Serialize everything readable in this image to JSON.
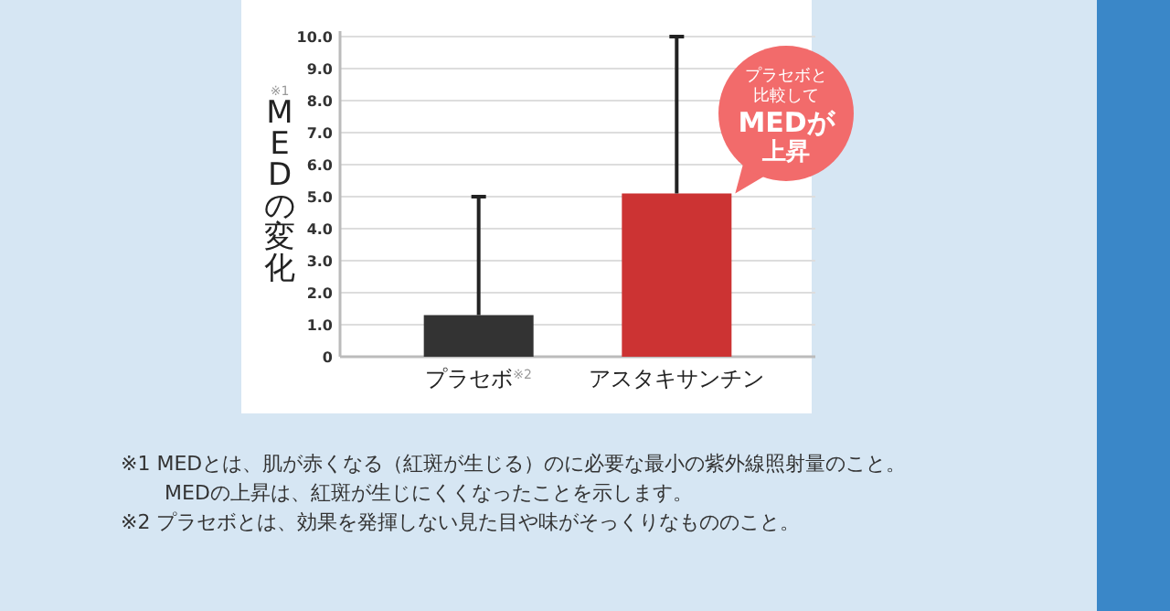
{
  "chart_data": {
    "type": "bar",
    "ylabel": "$^{※1}$MEDの変化",
    "categories": [
      "プラセボ$^{※2}$",
      "アスタキサンチン"
    ],
    "values": [
      1.3,
      5.1
    ],
    "colors": [
      "#333333",
      "#cc3333"
    ],
    "errors": [
      [
        1.3,
        5.0
      ],
      [
        5.1,
        10.0
      ]
    ],
    "ylim": [
      0,
      10
    ],
    "yticks": [
      0,
      {
        "value": 1,
        "label": "1.0"
      },
      {
        "value": 2,
        "label": "2.0"
      },
      {
        "value": 3,
        "label": "3.0"
      },
      {
        "value": 4,
        "label": "4.0"
      },
      {
        "value": 5,
        "label": "5.0"
      },
      {
        "value": 6,
        "label": "6.0"
      },
      {
        "value": 7,
        "label": "7.0"
      },
      {
        "value": 8,
        "label": "8.0"
      },
      {
        "value": 9,
        "label": "9.0"
      },
      {
        "value": 10,
        "label": "10.0"
      }
    ],
    "grid": "y",
    "annotations": [
      {
        "text": "プラセボと比較してMEDが上昇",
        "x": "アスタキサンチン",
        "y": 5.1
      },
      "※1 MEDとは、肌が赤くなる（紅斑が生じる）のに必要な最小の紫外線照射量のこと。\nMEDの上昇は、紅斑が生じにくくなったことを示します。",
      "※2 プラセボとは、効果を発揮しない見た目や味がそっくりなもののこと。"
    ]
  }
}
